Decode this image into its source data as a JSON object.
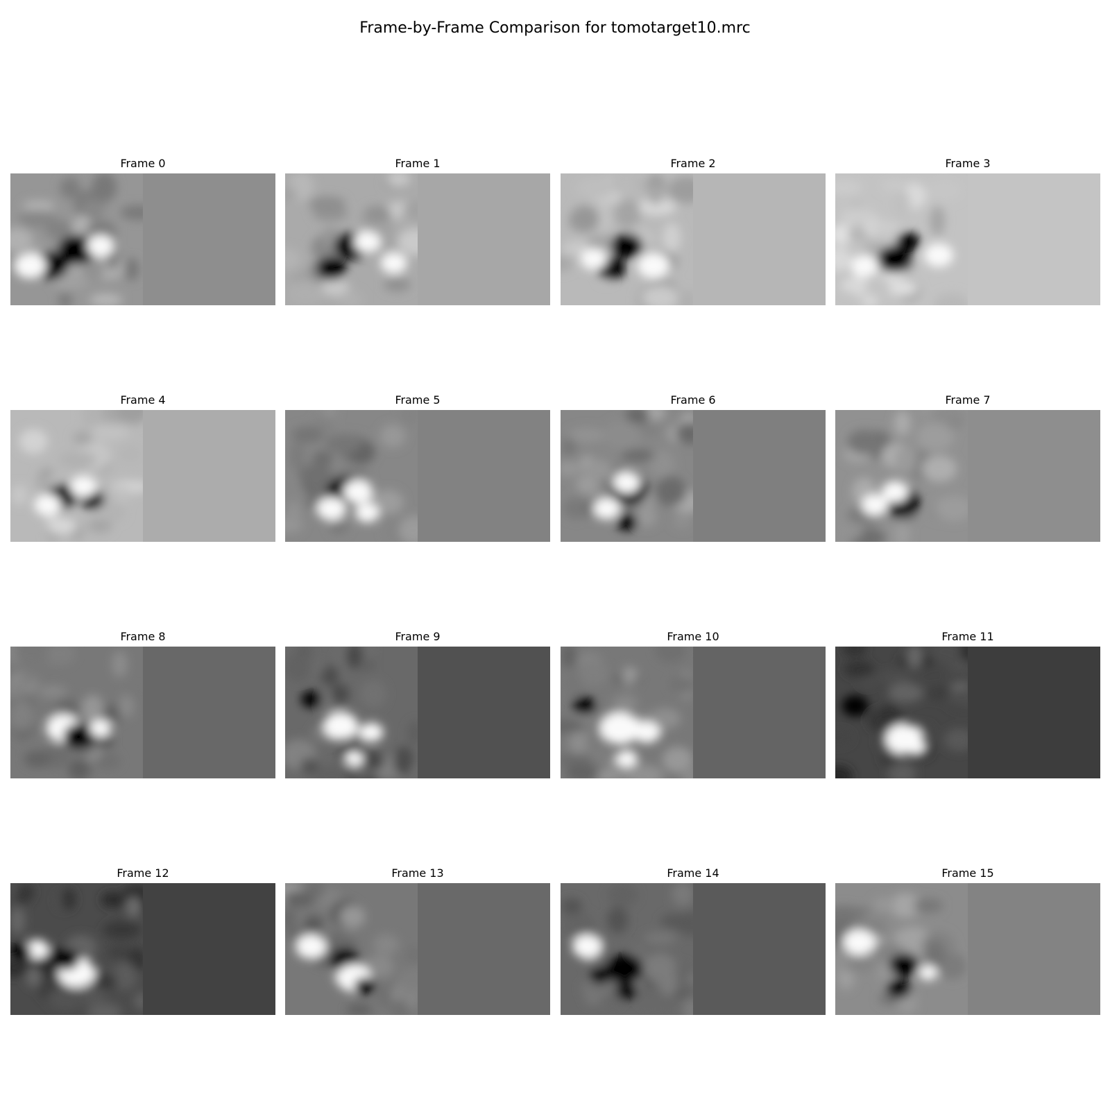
{
  "figure": {
    "title": "Frame-by-Frame Comparison for tomotarget10.mrc"
  },
  "frames": [
    {
      "label": "Frame 0",
      "right_gray": "#8e8e8e",
      "left_base": 150,
      "features": [
        {
          "u": 0.5,
          "v": 0.58,
          "r": 0.14,
          "kind": "dark"
        },
        {
          "u": 0.3,
          "v": 0.7,
          "r": 0.13,
          "kind": "dark"
        },
        {
          "u": 0.68,
          "v": 0.55,
          "r": 0.1,
          "kind": "light"
        },
        {
          "u": 0.15,
          "v": 0.7,
          "r": 0.12,
          "kind": "light"
        }
      ]
    },
    {
      "label": "Frame 1",
      "right_gray": "#a7a7a7",
      "left_base": 170,
      "features": [
        {
          "u": 0.5,
          "v": 0.55,
          "r": 0.13,
          "kind": "dark"
        },
        {
          "u": 0.35,
          "v": 0.72,
          "r": 0.11,
          "kind": "dark"
        },
        {
          "u": 0.62,
          "v": 0.52,
          "r": 0.1,
          "kind": "light"
        },
        {
          "u": 0.82,
          "v": 0.68,
          "r": 0.1,
          "kind": "light"
        }
      ]
    },
    {
      "label": "Frame 2",
      "right_gray": "#b6b6b6",
      "left_base": 185,
      "features": [
        {
          "u": 0.5,
          "v": 0.55,
          "r": 0.12,
          "kind": "dark"
        },
        {
          "u": 0.38,
          "v": 0.72,
          "r": 0.11,
          "kind": "dark"
        },
        {
          "u": 0.7,
          "v": 0.7,
          "r": 0.12,
          "kind": "light"
        },
        {
          "u": 0.25,
          "v": 0.65,
          "r": 0.1,
          "kind": "light"
        }
      ]
    },
    {
      "label": "Frame 3",
      "right_gray": "#c4c4c4",
      "left_base": 195,
      "features": [
        {
          "u": 0.45,
          "v": 0.65,
          "r": 0.13,
          "kind": "dark"
        },
        {
          "u": 0.55,
          "v": 0.52,
          "r": 0.09,
          "kind": "dark"
        },
        {
          "u": 0.78,
          "v": 0.62,
          "r": 0.11,
          "kind": "light"
        },
        {
          "u": 0.22,
          "v": 0.7,
          "r": 0.1,
          "kind": "light"
        }
      ]
    },
    {
      "label": "Frame 4",
      "right_gray": "#acacac",
      "left_base": 185,
      "features": [
        {
          "u": 0.4,
          "v": 0.65,
          "r": 0.11,
          "kind": "dark"
        },
        {
          "u": 0.62,
          "v": 0.68,
          "r": 0.09,
          "kind": "dark"
        },
        {
          "u": 0.55,
          "v": 0.58,
          "r": 0.1,
          "kind": "light"
        },
        {
          "u": 0.28,
          "v": 0.72,
          "r": 0.1,
          "kind": "light"
        }
      ]
    },
    {
      "label": "Frame 5",
      "right_gray": "#828282",
      "left_base": 135,
      "features": [
        {
          "u": 0.45,
          "v": 0.62,
          "r": 0.14,
          "kind": "dark"
        },
        {
          "u": 0.55,
          "v": 0.62,
          "r": 0.11,
          "kind": "light"
        },
        {
          "u": 0.35,
          "v": 0.75,
          "r": 0.11,
          "kind": "light"
        },
        {
          "u": 0.62,
          "v": 0.78,
          "r": 0.09,
          "kind": "light"
        }
      ]
    },
    {
      "label": "Frame 6",
      "right_gray": "#7f7f7f",
      "left_base": 135,
      "features": [
        {
          "u": 0.52,
          "v": 0.6,
          "r": 0.14,
          "kind": "dark"
        },
        {
          "u": 0.5,
          "v": 0.55,
          "r": 0.1,
          "kind": "light"
        },
        {
          "u": 0.35,
          "v": 0.75,
          "r": 0.1,
          "kind": "light"
        },
        {
          "u": 0.5,
          "v": 0.85,
          "r": 0.08,
          "kind": "dark"
        }
      ]
    },
    {
      "label": "Frame 7",
      "right_gray": "#8e8e8e",
      "left_base": 145,
      "features": [
        {
          "u": 0.5,
          "v": 0.7,
          "r": 0.14,
          "kind": "dark"
        },
        {
          "u": 0.45,
          "v": 0.62,
          "r": 0.1,
          "kind": "light"
        },
        {
          "u": 0.3,
          "v": 0.72,
          "r": 0.1,
          "kind": "light"
        }
      ]
    },
    {
      "label": "Frame 8",
      "right_gray": "#686868",
      "left_base": 120,
      "features": [
        {
          "u": 0.4,
          "v": 0.62,
          "r": 0.13,
          "kind": "light"
        },
        {
          "u": 0.52,
          "v": 0.68,
          "r": 0.12,
          "kind": "dark"
        },
        {
          "u": 0.68,
          "v": 0.62,
          "r": 0.08,
          "kind": "light"
        }
      ]
    },
    {
      "label": "Frame 9",
      "right_gray": "#515151",
      "left_base": 105,
      "features": [
        {
          "u": 0.42,
          "v": 0.6,
          "r": 0.13,
          "kind": "light"
        },
        {
          "u": 0.65,
          "v": 0.65,
          "r": 0.09,
          "kind": "light"
        },
        {
          "u": 0.2,
          "v": 0.4,
          "r": 0.08,
          "kind": "dark"
        },
        {
          "u": 0.5,
          "v": 0.82,
          "r": 0.09,
          "kind": "dark"
        },
        {
          "u": 0.52,
          "v": 0.85,
          "r": 0.07,
          "kind": "light"
        }
      ]
    },
    {
      "label": "Frame 10",
      "right_gray": "#646464",
      "left_base": 120,
      "features": [
        {
          "u": 0.45,
          "v": 0.62,
          "r": 0.15,
          "kind": "light"
        },
        {
          "u": 0.65,
          "v": 0.65,
          "r": 0.1,
          "kind": "light"
        },
        {
          "u": 0.18,
          "v": 0.45,
          "r": 0.09,
          "kind": "dark"
        },
        {
          "u": 0.5,
          "v": 0.85,
          "r": 0.08,
          "kind": "light"
        }
      ]
    },
    {
      "label": "Frame 11",
      "right_gray": "#3d3d3d",
      "left_base": 70,
      "features": [
        {
          "u": 0.52,
          "v": 0.7,
          "r": 0.14,
          "kind": "light"
        },
        {
          "u": 0.15,
          "v": 0.45,
          "r": 0.1,
          "kind": "dark"
        },
        {
          "u": 0.6,
          "v": 0.75,
          "r": 0.08,
          "kind": "light"
        }
      ]
    },
    {
      "label": "Frame 12",
      "right_gray": "#424242",
      "left_base": 75,
      "features": [
        {
          "u": 0.5,
          "v": 0.68,
          "r": 0.14,
          "kind": "light"
        },
        {
          "u": 0.42,
          "v": 0.58,
          "r": 0.1,
          "kind": "dark"
        },
        {
          "u": 0.2,
          "v": 0.5,
          "r": 0.09,
          "kind": "light"
        },
        {
          "u": 0.08,
          "v": 0.52,
          "r": 0.08,
          "kind": "dark"
        }
      ]
    },
    {
      "label": "Frame 13",
      "right_gray": "#696969",
      "left_base": 120,
      "features": [
        {
          "u": 0.2,
          "v": 0.48,
          "r": 0.11,
          "kind": "light"
        },
        {
          "u": 0.45,
          "v": 0.58,
          "r": 0.11,
          "kind": "dark"
        },
        {
          "u": 0.52,
          "v": 0.72,
          "r": 0.13,
          "kind": "light"
        },
        {
          "u": 0.6,
          "v": 0.78,
          "r": 0.08,
          "kind": "dark"
        }
      ]
    },
    {
      "label": "Frame 14",
      "right_gray": "#5a5a5a",
      "left_base": 105,
      "features": [
        {
          "u": 0.2,
          "v": 0.48,
          "r": 0.11,
          "kind": "light"
        },
        {
          "u": 0.48,
          "v": 0.65,
          "r": 0.14,
          "kind": "dark"
        },
        {
          "u": 0.5,
          "v": 0.82,
          "r": 0.08,
          "kind": "dark"
        },
        {
          "u": 0.3,
          "v": 0.7,
          "r": 0.08,
          "kind": "dark"
        }
      ]
    },
    {
      "label": "Frame 15",
      "right_gray": "#838383",
      "left_base": 140,
      "features": [
        {
          "u": 0.18,
          "v": 0.45,
          "r": 0.12,
          "kind": "light"
        },
        {
          "u": 0.52,
          "v": 0.62,
          "r": 0.11,
          "kind": "dark"
        },
        {
          "u": 0.48,
          "v": 0.8,
          "r": 0.09,
          "kind": "dark"
        },
        {
          "u": 0.7,
          "v": 0.68,
          "r": 0.07,
          "kind": "light"
        }
      ]
    }
  ]
}
